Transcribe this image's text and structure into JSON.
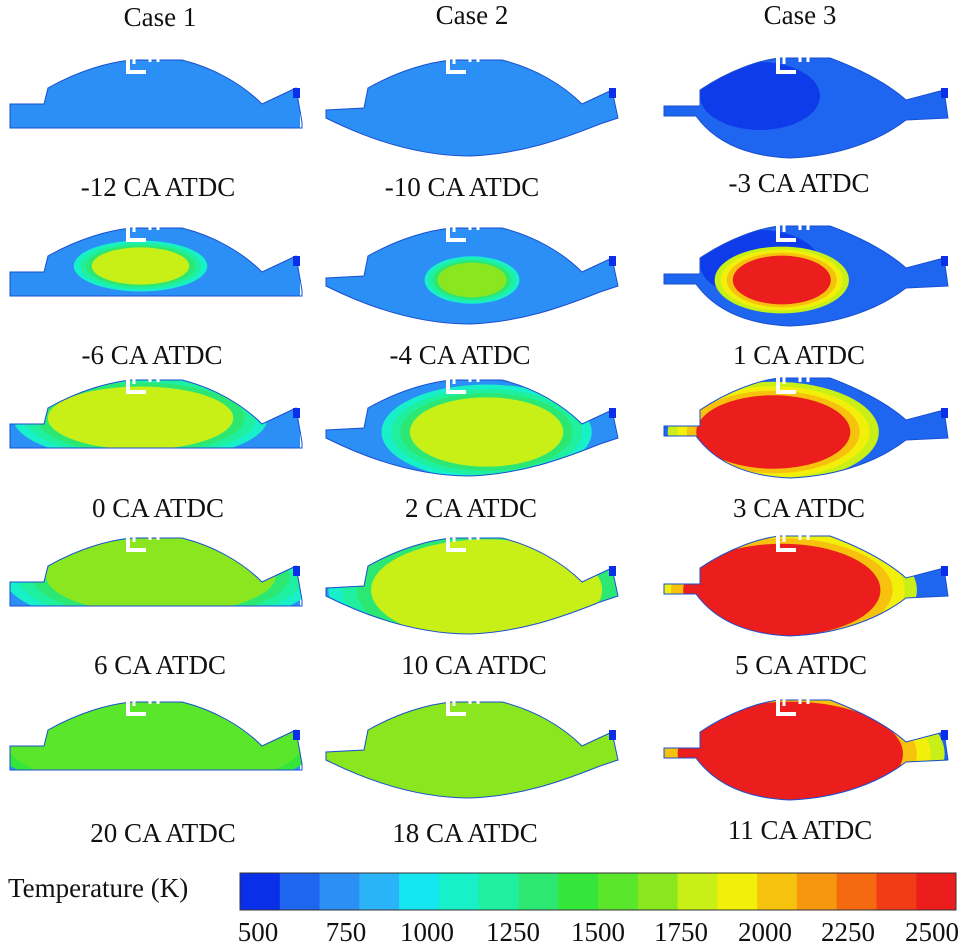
{
  "columns": [
    {
      "title": "Case 1",
      "frames": [
        "-12 CA ATDC",
        "-6 CA ATDC",
        "0 CA ATDC",
        "6 CA ATDC",
        "20 CA ATDC"
      ]
    },
    {
      "title": "Case 2",
      "frames": [
        "-10 CA ATDC",
        "-4 CA ATDC",
        "2 CA ATDC",
        "10 CA ATDC",
        "18 CA ATDC"
      ]
    },
    {
      "title": "Case 3",
      "frames": [
        "-3 CA ATDC",
        "1 CA ATDC",
        "3 CA ATDC",
        "5 CA ATDC",
        "11 CA ATDC"
      ]
    }
  ],
  "colorbar": {
    "label": "Temperature (K)",
    "ticks": [
      "500",
      "750",
      "1000",
      "1250",
      "1500",
      "1750",
      "2000",
      "2250",
      "2500"
    ],
    "colors": [
      "#0a2fe8",
      "#1e66f0",
      "#2c8ff5",
      "#2ab3f6",
      "#16e6f0",
      "#17f0c8",
      "#1ff0a0",
      "#2ce873",
      "#34e63a",
      "#5ae62a",
      "#8ae61e",
      "#c8f017",
      "#f2f00a",
      "#f7c20e",
      "#f7960f",
      "#f56a10",
      "#f23c16",
      "#ec1d1d"
    ]
  },
  "frame_fields": {
    "c0": [
      {
        "flame": null
      },
      {
        "flame": {
          "level": 11,
          "size": 0.35,
          "shift": -0.05,
          "edge": 5
        }
      },
      {
        "flame": {
          "level": 11,
          "size": 0.75,
          "shift": -0.05,
          "edge": 5
        }
      },
      {
        "flame": {
          "level": 10,
          "size": 0.95,
          "shift": 0.02,
          "edge": 5
        }
      },
      {
        "flame": {
          "level": 9,
          "size": 1.0,
          "shift": 0.0,
          "edge": 8
        }
      }
    ],
    "c1": [
      {
        "flame": null
      },
      {
        "flame": {
          "level": 10,
          "size": 0.22,
          "shift": 0.0,
          "edge": 5
        }
      },
      {
        "flame": {
          "level": 11,
          "size": 0.6,
          "shift": 0.05,
          "edge": 5
        }
      },
      {
        "flame": {
          "level": 11,
          "size": 0.95,
          "shift": 0.05,
          "edge": 5
        }
      },
      {
        "flame": {
          "level": 10,
          "size": 1.0,
          "shift": 0.0,
          "edge": 9
        }
      }
    ],
    "c2": [
      {
        "flame": null
      },
      {
        "flame": {
          "level": 17,
          "size": 0.36,
          "shift": -0.05,
          "edge": 11
        }
      },
      {
        "flame": {
          "level": 17,
          "size": 0.62,
          "shift": -0.08,
          "edge": 11
        }
      },
      {
        "flame": {
          "level": 17,
          "size": 0.82,
          "shift": -0.05,
          "edge": 11
        }
      },
      {
        "flame": {
          "level": 17,
          "size": 0.95,
          "shift": -0.02,
          "edge": 11
        }
      }
    ]
  }
}
